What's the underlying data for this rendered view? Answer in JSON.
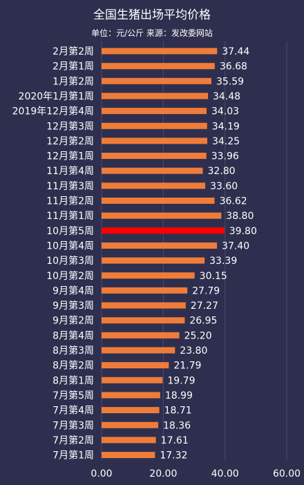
{
  "chart_data": {
    "type": "bar",
    "orientation": "horizontal",
    "title": "全国生猪出场平均价格",
    "subtitle": "单位：元/公斤 来源：发改委网站",
    "categories": [
      "2月第2周",
      "2月第1周",
      "1月第2周",
      "2020年1月第1周",
      "2019年12月第4周",
      "12月第3周",
      "12月第2周",
      "12月第1周",
      "11月第4周",
      "11月第3周",
      "11月第2周",
      "11月第1周",
      "10月第5周",
      "10月第4周",
      "10月第3周",
      "10月第2周",
      "9月第4周",
      "9月第3周",
      "9月第2周",
      "8月第4周",
      "8月第3周",
      "8月第2周",
      "8月第1周",
      "7月第5周",
      "7月第4周",
      "7月第3周",
      "7月第2周",
      "7月第1周"
    ],
    "values": [
      37.44,
      36.68,
      35.59,
      34.48,
      34.03,
      34.19,
      34.25,
      33.96,
      32.8,
      33.6,
      36.62,
      38.8,
      39.8,
      37.4,
      33.39,
      30.15,
      27.79,
      27.27,
      26.95,
      25.2,
      23.8,
      21.79,
      19.79,
      18.99,
      18.71,
      18.36,
      17.61,
      17.32
    ],
    "value_labels": [
      "37.44",
      "36.68",
      "35.59",
      "34.48",
      "34.03",
      "34.19",
      "34.25",
      "33.96",
      "32.80",
      "33.60",
      "36.62",
      "38.80",
      "39.80",
      "37.40",
      "33.39",
      "30.15",
      "27.79",
      "27.27",
      "26.95",
      "25.20",
      "23.80",
      "21.79",
      "19.79",
      "18.99",
      "18.71",
      "18.36",
      "17.61",
      "17.32"
    ],
    "highlight_category": "10月第5周",
    "xlim": [
      0,
      60
    ],
    "x_ticks": [
      "0.00",
      "20.00",
      "40.00",
      "60.00"
    ],
    "grid": true,
    "colors": {
      "background": "#2e2f4f",
      "bar": "#f07c3a",
      "highlight": "#ff0000",
      "grid": "#4a4b6e",
      "text": "#ffffff"
    }
  }
}
